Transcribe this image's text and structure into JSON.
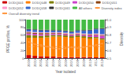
{
  "chart_data": {
    "type": "bar",
    "stacked": true,
    "grid": false,
    "legend": "upper left",
    "xlabel": "Year isolated",
    "ylabel": "PFGE profiles, %",
    "y2label": "Diversity",
    "categories": [
      "2000",
      "2001",
      "2002",
      "2003",
      "2004",
      "2005",
      "2006",
      "2007",
      "2008",
      "2009",
      "2010",
      "2011",
      "2012"
    ],
    "series": [
      {
        "name": "DODQ001",
        "color": "#cc0000",
        "values": [
          8,
          6,
          5,
          4,
          4,
          3,
          3,
          3,
          3,
          3,
          3,
          2,
          2
        ]
      },
      {
        "name": "DODQ048",
        "color": "#ff8000",
        "values": [
          45,
          47,
          48,
          50,
          52,
          53,
          52,
          50,
          52,
          50,
          48,
          50,
          46
        ]
      },
      {
        "name": "DODQ049",
        "color": "#808000",
        "values": [
          7,
          6,
          5,
          5,
          4,
          4,
          4,
          4,
          4,
          4,
          4,
          3,
          3
        ]
      },
      {
        "name": "DODQ050",
        "color": "#cc44cc",
        "values": [
          4,
          4,
          4,
          3,
          3,
          3,
          3,
          3,
          3,
          3,
          4,
          5,
          7
        ]
      },
      {
        "name": "DODQ051",
        "color": "#8B4513",
        "values": [
          3,
          3,
          3,
          3,
          2,
          2,
          2,
          2,
          2,
          2,
          2,
          2,
          2
        ]
      },
      {
        "name": "DODQ052",
        "color": "#ff99cc",
        "values": [
          2,
          2,
          2,
          2,
          2,
          2,
          2,
          2,
          2,
          2,
          2,
          2,
          2
        ]
      },
      {
        "name": "DODQ058",
        "color": "#3366cc",
        "values": [
          5,
          5,
          5,
          5,
          4,
          4,
          4,
          4,
          5,
          7,
          9,
          11,
          14
        ]
      },
      {
        "name": "DODQ061",
        "color": "#333333",
        "values": [
          2,
          2,
          2,
          2,
          2,
          2,
          2,
          2,
          2,
          2,
          2,
          2,
          2
        ]
      },
      {
        "name": "All others",
        "color": "#44bb44",
        "values": [
          24,
          25,
          26,
          26,
          27,
          27,
          28,
          30,
          27,
          27,
          26,
          23,
          22
        ]
      },
      {
        "name": "Diversity index",
        "type": "line",
        "axis": "y2",
        "color": "#ff9944",
        "marker": "circle",
        "line_style": "solid",
        "values": [
          0.71,
          0.68,
          0.67,
          0.65,
          0.63,
          0.62,
          0.63,
          0.64,
          0.63,
          0.64,
          0.66,
          0.67,
          0.69
        ]
      },
      {
        "name": "Overall diversity trend",
        "type": "line",
        "axis": "y2",
        "color": "#ff9944",
        "line_style": "dashed",
        "values": [
          0.65,
          0.65,
          0.65,
          0.65,
          0.65,
          0.65,
          0.65,
          0.65,
          0.65,
          0.65,
          0.65,
          0.65,
          0.65
        ]
      }
    ],
    "ylim": [
      0,
      100
    ],
    "yticks": [
      0,
      20,
      40,
      60,
      80,
      100
    ],
    "y2lim": [
      0.5,
      1.0
    ],
    "y2ticks": [
      0.5,
      0.6,
      0.7,
      0.8,
      0.9,
      {
        "value": 1.0,
        "label": "1.0"
      }
    ]
  }
}
